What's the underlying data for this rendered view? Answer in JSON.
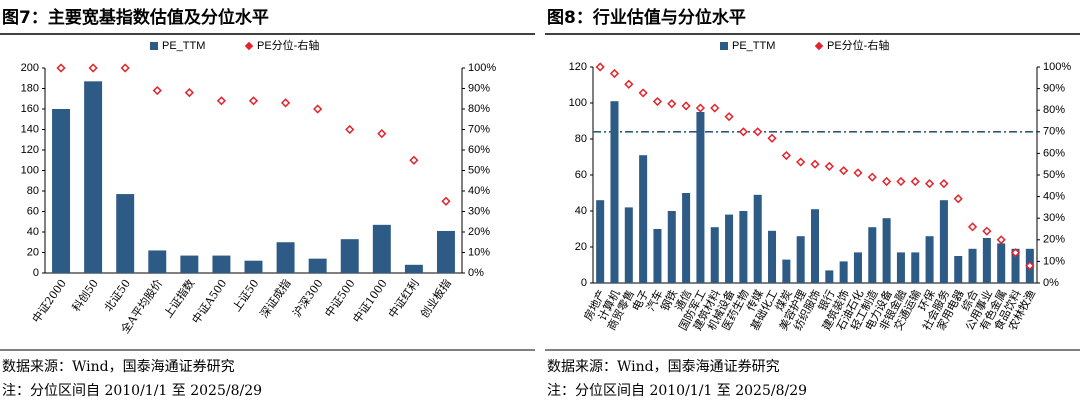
{
  "chart_data": [
    {
      "type": "bar",
      "title": "图7：主要宽基指数估值及分位水平",
      "categories": [
        "中证2000",
        "科创50",
        "北证50",
        "全A平均股价",
        "上证指数",
        "中证A500",
        "上证50",
        "深证成指",
        "沪深300",
        "中证500",
        "中证1000",
        "中证红利",
        "创业板指"
      ],
      "series": [
        {
          "name": "PE_TTM",
          "type": "bar",
          "color": "#2e5b86",
          "values": [
            160,
            187,
            77,
            22,
            17,
            17,
            12,
            30,
            14,
            33,
            47,
            8,
            41
          ]
        },
        {
          "name": "PE分位-右轴",
          "type": "scatter",
          "axis": "y2",
          "color": "#e5232b",
          "values": [
            100,
            100,
            100,
            89,
            88,
            84,
            84,
            83,
            80,
            70,
            68,
            55,
            35
          ]
        }
      ],
      "ylim": [
        0,
        200
      ],
      "yticks": [
        0,
        20,
        40,
        60,
        80,
        100,
        120,
        140,
        160,
        180,
        200
      ],
      "y2lim": [
        0,
        100
      ],
      "y2ticks": [
        {
          "value": 0,
          "label": "0%"
        },
        {
          "value": 10,
          "label": "10%"
        },
        {
          "value": 20,
          "label": "20%"
        },
        {
          "value": 30,
          "label": "30%"
        },
        {
          "value": 40,
          "label": "40%"
        },
        {
          "value": 50,
          "label": "50%"
        },
        {
          "value": 60,
          "label": "60%"
        },
        {
          "value": 70,
          "label": "70%"
        },
        {
          "value": 80,
          "label": "80%"
        },
        {
          "value": 90,
          "label": "90%"
        },
        {
          "value": 100,
          "label": "100%"
        }
      ],
      "source": "数据来源：Wind，国泰海通证券研究",
      "note": "注：分位区间自 2010/1/1 至 2025/8/29"
    },
    {
      "type": "bar",
      "title": "图8：行业估值与分位水平",
      "categories": [
        "房地产",
        "计算机",
        "商贸零售",
        "电子",
        "汽车",
        "钢铁",
        "通信",
        "国防军工",
        "建筑材料",
        "机械设备",
        "医药生物",
        "传媒",
        "基础化工",
        "煤炭",
        "美容护理",
        "纺织服饰",
        "银行",
        "建筑装饰",
        "石油石化",
        "轻工制造",
        "电力设备",
        "非银金融",
        "交通运输",
        "环保",
        "社会服务",
        "家用电器",
        "综合",
        "公用事业",
        "有色金属",
        "食品饮料",
        "农林牧渔"
      ],
      "series": [
        {
          "name": "PE_TTM",
          "type": "bar",
          "color": "#2e5b86",
          "values": [
            46,
            101,
            42,
            71,
            30,
            40,
            50,
            95,
            31,
            38,
            40,
            49,
            29,
            13,
            26,
            41,
            7,
            12,
            17,
            31,
            36,
            17,
            17,
            26,
            46,
            15,
            19,
            25,
            22,
            19,
            19
          ]
        },
        {
          "name": "PE分位-右轴",
          "type": "scatter",
          "axis": "y2",
          "color": "#e5232b",
          "values": [
            100,
            97,
            92,
            88,
            84,
            83,
            82,
            81,
            81,
            77,
            70,
            70,
            67,
            59,
            56,
            55,
            54,
            52,
            51,
            49,
            47,
            47,
            47,
            46,
            46,
            39,
            26,
            24,
            20,
            14,
            8
          ]
        }
      ],
      "reference_line": {
        "value": 70,
        "axis": "y2"
      },
      "ylim": [
        0,
        120
      ],
      "yticks": [
        0,
        20,
        40,
        60,
        80,
        100,
        120
      ],
      "y2lim": [
        0,
        100
      ],
      "y2ticks": [
        {
          "value": 0,
          "label": "0%"
        },
        {
          "value": 10,
          "label": "10%"
        },
        {
          "value": 20,
          "label": "20%"
        },
        {
          "value": 30,
          "label": "30%"
        },
        {
          "value": 40,
          "label": "40%"
        },
        {
          "value": 50,
          "label": "50%"
        },
        {
          "value": 60,
          "label": "60%"
        },
        {
          "value": 70,
          "label": "70%"
        },
        {
          "value": 80,
          "label": "80%"
        },
        {
          "value": 90,
          "label": "90%"
        },
        {
          "value": 100,
          "label": "100%"
        }
      ],
      "source": "数据来源：Wind，国泰海通证券研究",
      "note": "注：分位区间自 2010/1/1 至 2025/8/29"
    }
  ]
}
